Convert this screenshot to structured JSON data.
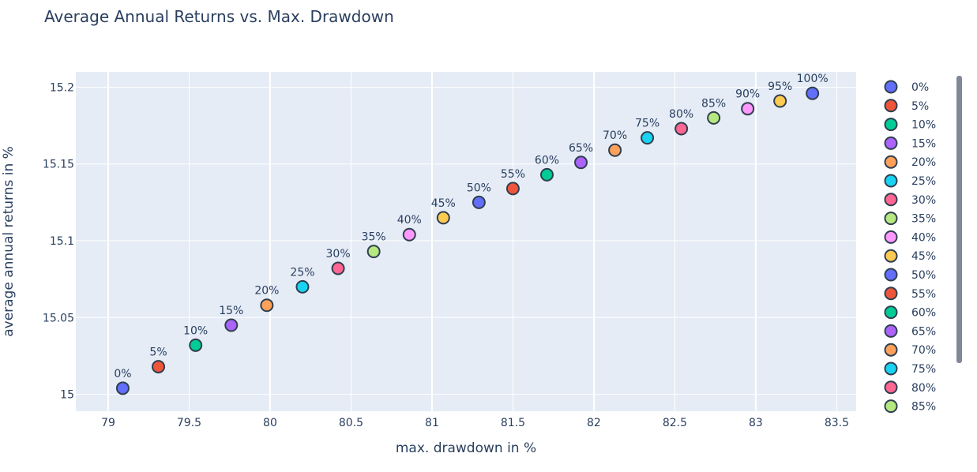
{
  "chart_data": {
    "type": "scatter",
    "title": "Average Annual Returns vs. Max. Drawdown",
    "xlabel": "max. drawdown in %",
    "ylabel": "average annual returns in %",
    "xlim": [
      78.8,
      83.62
    ],
    "ylim": [
      14.989,
      15.21
    ],
    "x_ticks": [
      79,
      79.5,
      80,
      80.5,
      81,
      81.5,
      82,
      82.5,
      83,
      83.5
    ],
    "y_ticks": [
      15,
      15.05,
      15.1,
      15.15,
      15.2
    ],
    "grid": true,
    "legend_position": "right",
    "series": [
      {
        "name": "0%",
        "x": 79.09,
        "y": 15.004,
        "label": "0%",
        "color": "#636efa"
      },
      {
        "name": "5%",
        "x": 79.31,
        "y": 15.018,
        "label": "5%",
        "color": "#EF553B"
      },
      {
        "name": "10%",
        "x": 79.54,
        "y": 15.032,
        "label": "10%",
        "color": "#00cc96"
      },
      {
        "name": "15%",
        "x": 79.76,
        "y": 15.045,
        "label": "15%",
        "color": "#ab63fa"
      },
      {
        "name": "20%",
        "x": 79.98,
        "y": 15.058,
        "label": "20%",
        "color": "#FFA15A"
      },
      {
        "name": "25%",
        "x": 80.2,
        "y": 15.07,
        "label": "25%",
        "color": "#19d3f3"
      },
      {
        "name": "30%",
        "x": 80.42,
        "y": 15.082,
        "label": "30%",
        "color": "#FF6692"
      },
      {
        "name": "35%",
        "x": 80.64,
        "y": 15.093,
        "label": "35%",
        "color": "#B6E880"
      },
      {
        "name": "40%",
        "x": 80.86,
        "y": 15.104,
        "label": "40%",
        "color": "#FF97FF"
      },
      {
        "name": "45%",
        "x": 81.07,
        "y": 15.115,
        "label": "45%",
        "color": "#FECB52"
      },
      {
        "name": "50%",
        "x": 81.29,
        "y": 15.125,
        "label": "50%",
        "color": "#636efa"
      },
      {
        "name": "55%",
        "x": 81.5,
        "y": 15.134,
        "label": "55%",
        "color": "#EF553B"
      },
      {
        "name": "60%",
        "x": 81.71,
        "y": 15.143,
        "label": "60%",
        "color": "#00cc96"
      },
      {
        "name": "65%",
        "x": 81.92,
        "y": 15.151,
        "label": "65%",
        "color": "#ab63fa"
      },
      {
        "name": "70%",
        "x": 82.13,
        "y": 15.159,
        "label": "70%",
        "color": "#FFA15A"
      },
      {
        "name": "75%",
        "x": 82.33,
        "y": 15.167,
        "label": "75%",
        "color": "#19d3f3"
      },
      {
        "name": "80%",
        "x": 82.54,
        "y": 15.173,
        "label": "80%",
        "color": "#FF6692"
      },
      {
        "name": "85%",
        "x": 82.74,
        "y": 15.18,
        "label": "85%",
        "color": "#B6E880"
      },
      {
        "name": "90%",
        "x": 82.95,
        "y": 15.186,
        "label": "90%",
        "color": "#FF97FF"
      },
      {
        "name": "95%",
        "x": 83.15,
        "y": 15.191,
        "label": "95%",
        "color": "#FECB52"
      },
      {
        "name": "100%",
        "x": 83.35,
        "y": 15.196,
        "label": "100%",
        "color": "#636efa"
      }
    ],
    "legend_visible_count": 18
  }
}
